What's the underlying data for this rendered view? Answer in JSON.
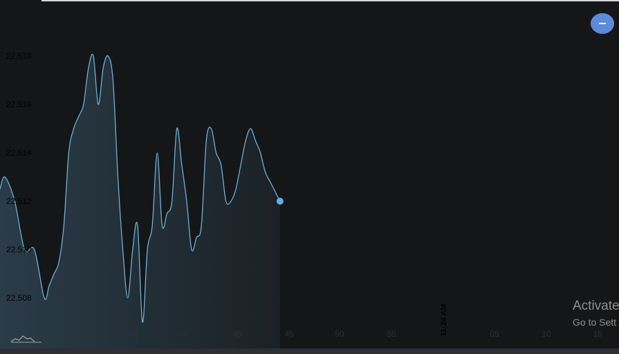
{
  "chart_data": {
    "type": "area",
    "x_ticks": [
      "25",
      "30",
      "35",
      "40",
      "45",
      "50",
      "55",
      "11:24 AM",
      "05",
      "10",
      "15"
    ],
    "y_ticks": [
      "22.508",
      "22.510",
      "22.512",
      "22.514",
      "22.516",
      "22.518"
    ],
    "ylim": [
      22.5065,
      22.5185
    ],
    "xlim": [
      17,
      80
    ],
    "grid": false,
    "series": [
      {
        "x": [
          17,
          17.5,
          18.5,
          19.5,
          20.5,
          21.5,
          22,
          22.5,
          23,
          23.5,
          24,
          24.5,
          25,
          25.5,
          26,
          26.5,
          27,
          27.5,
          28,
          28.5,
          29,
          29.5,
          30,
          30.5,
          31,
          31.5,
          32,
          32.5,
          33,
          33.5,
          34,
          34.5,
          35,
          35.5,
          36,
          36.5,
          37,
          37.5,
          38,
          38.5,
          39,
          39.5,
          40,
          40.5,
          41,
          41.5,
          42,
          42.5,
          43,
          43.5,
          44,
          44.5,
          45,
          45.5
        ],
        "values": [
          22.5125,
          22.513,
          22.512,
          22.51,
          22.51,
          22.508,
          22.5085,
          22.509,
          22.5095,
          22.511,
          22.514,
          22.515,
          22.5155,
          22.516,
          22.5175,
          22.518,
          22.516,
          22.5175,
          22.518,
          22.517,
          22.513,
          22.51,
          22.508,
          22.51,
          22.511,
          22.507,
          22.51,
          22.511,
          22.514,
          22.511,
          22.5115,
          22.512,
          22.515,
          22.5135,
          22.512,
          22.51,
          22.5105,
          22.511,
          22.5145,
          22.515,
          22.514,
          22.5135,
          22.512,
          22.512,
          22.5125,
          22.5135,
          22.5145,
          22.515,
          22.5145,
          22.514,
          22.5132,
          22.5128,
          22.5124,
          22.512
        ]
      }
    ],
    "colors": {
      "line": "#6ab3dc",
      "fill_top": "#2a3c48",
      "fill_bottom": "#151617",
      "marker": "#5fb0e8",
      "background": "#151617"
    }
  },
  "ui": {
    "zoom_out_icon": "minus-icon",
    "watermark_line1": "Activate",
    "watermark_line2": "Go to Sett"
  }
}
